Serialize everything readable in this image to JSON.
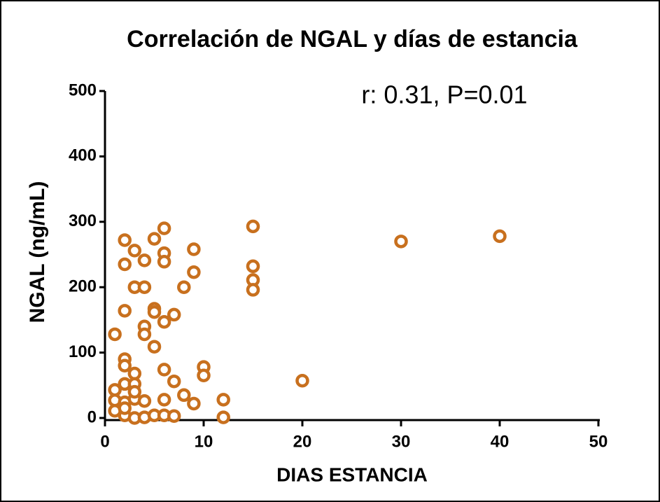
{
  "chart_data": {
    "type": "scatter",
    "title": "Correlación de NGAL y días de estancia",
    "annotation": "r: 0.31, P=0.01",
    "x_label": "DIAS ESTANCIA",
    "y_label": "NGAL (ng/mL)",
    "color": "#c8701e",
    "xlim": [
      0,
      50
    ],
    "xticks": [
      0,
      10,
      20,
      30,
      40,
      50
    ],
    "ylim": [
      0,
      500
    ],
    "yticks": [
      0,
      100,
      200,
      300,
      400,
      500
    ],
    "series": [
      {
        "name": "NGAL",
        "x": [
          1,
          1,
          1,
          1,
          2,
          2,
          2,
          2,
          2,
          2,
          2,
          2,
          2,
          3,
          3,
          3,
          3,
          3,
          3,
          3,
          4,
          4,
          4,
          4,
          4,
          4,
          5,
          5,
          5,
          5,
          5,
          6,
          6,
          6,
          6,
          6,
          6,
          6,
          7,
          7,
          7,
          8,
          8,
          9,
          9,
          9,
          10,
          10,
          12,
          12,
          15,
          15,
          15,
          15,
          20,
          30,
          40
        ],
        "values": [
          128,
          43,
          27,
          11,
          272,
          235,
          164,
          90,
          80,
          52,
          24,
          4,
          15,
          256,
          200,
          68,
          52,
          29,
          0,
          40,
          241,
          200,
          140,
          128,
          26,
          1,
          274,
          167,
          162,
          109,
          4,
          290,
          252,
          239,
          147,
          74,
          28,
          4,
          158,
          56,
          3,
          200,
          35,
          258,
          223,
          22,
          78,
          65,
          28,
          1,
          293,
          232,
          211,
          196,
          57,
          270,
          278
        ]
      }
    ]
  }
}
